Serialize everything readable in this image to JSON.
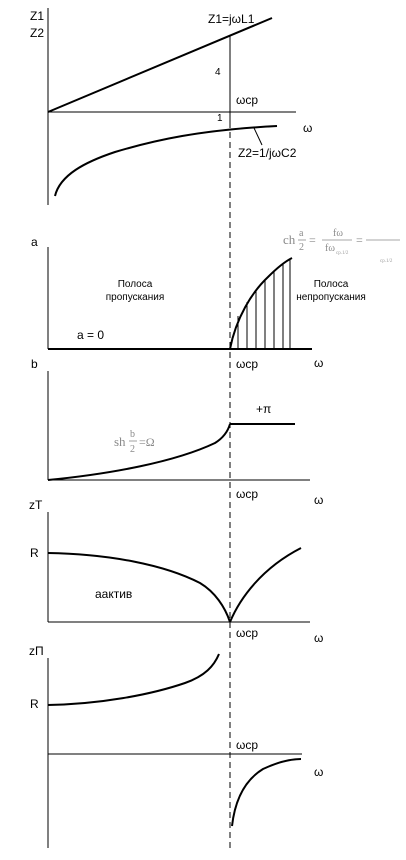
{
  "colors": {
    "ink": "#000000",
    "formula_gray": "#8a8a8a"
  },
  "panel1": {
    "y_label_1": "Z1",
    "y_label_2": "Z2",
    "z1_formula": "Z1=jωL1",
    "z2_formula": "Z2=1/jωC2",
    "marker_4": "4",
    "marker_1": "1",
    "omega_cr": "ωср",
    "x_label": "ω"
  },
  "panel2": {
    "y_label": "a",
    "pass_band_line1": "Полоса",
    "pass_band_line2": "пропускания",
    "stop_band_line1": "Полоса",
    "stop_band_line2": "непропускания",
    "a_zero": "a = 0",
    "omega_cr": "ωср",
    "x_label": "ω",
    "formula_ch": "ch",
    "formula_a": "a",
    "formula_2": "2",
    "formula_eq": "=",
    "formula_num": "fω",
    "formula_den": "fω",
    "formula_den_sub": "cp.1/2",
    "formula_eq2": "=",
    "formula_sub_right": "cp.1/2"
  },
  "panel3": {
    "y_label": "b",
    "plus_pi": "+π",
    "omega_cr": "ωср",
    "x_label": "ω",
    "formula_sh": "sh",
    "formula_b": "b",
    "formula_2": "2",
    "formula_rhs": "=Ω"
  },
  "panel4": {
    "y_label": "zT",
    "r_label": "R",
    "a_active": "aактив",
    "omega_cr": "ωср",
    "x_label": "ω"
  },
  "panel5": {
    "y_label": "zП",
    "r_label": "R",
    "omega_cr": "ωср",
    "x_label": "ω"
  }
}
